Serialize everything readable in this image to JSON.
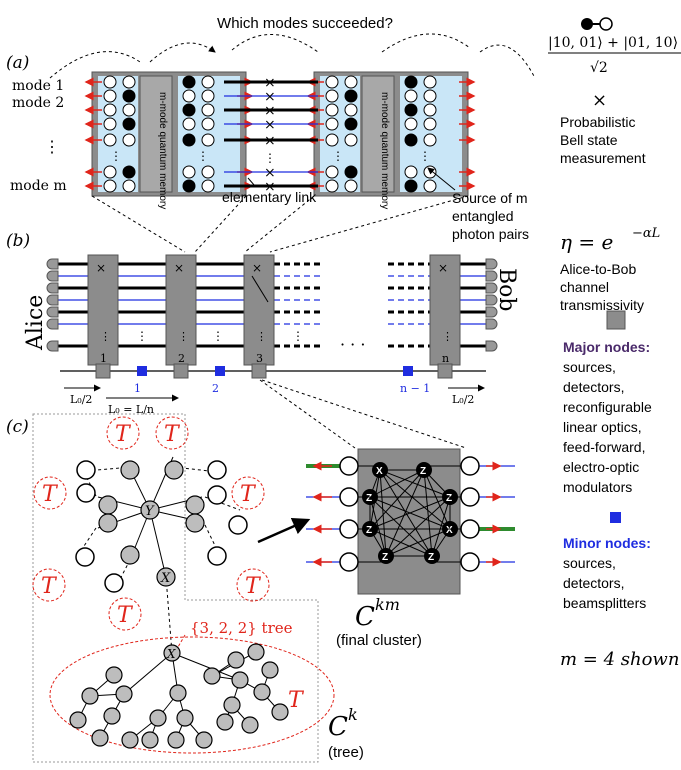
{
  "header": {
    "question": "Which modes succeeded?"
  },
  "panel_a": {
    "label": "(a)",
    "modes": [
      "mode 1",
      "mode 2",
      "mode m"
    ],
    "vdots": "⋮",
    "memory_label": "m-mode quantum memory",
    "elementary_link": "elementary link",
    "source_label_1": "Source of m",
    "source_label_2": "entangled",
    "source_label_3": "photon pairs"
  },
  "panel_b": {
    "label": "(b)",
    "alice": "Alice",
    "bob": "Bob",
    "dots": "· · ·",
    "major_numbers": [
      "1",
      "2",
      "3",
      "n"
    ],
    "minor_numbers": [
      "1",
      "2",
      "n − 1"
    ],
    "l0_half": "L₀/2",
    "l0_eq": "L₀ = L/n"
  },
  "panel_c": {
    "label": "(c)",
    "t_label": "T",
    "y_label": "Y",
    "x_label": "X",
    "z_label": "Z",
    "tree_label": "{3, 2, 2} tree",
    "ckm": "C",
    "ckm_sup": "km",
    "ckm_caption": "(final cluster)",
    "ck": "C",
    "ck_sup": "k",
    "ck_caption": "(tree)"
  },
  "legend": {
    "bell_state": "|10, 01⟩ + |01, 10⟩",
    "sqrt2": "√2",
    "cross": "×",
    "bsm_1": "Probabilistic",
    "bsm_2": "Bell state",
    "bsm_3": "measurement",
    "eta_formula": "η = e",
    "eta_exp": "−αL",
    "channel_1": "Alice-to-Bob",
    "channel_2": "channel",
    "channel_3": "transmissivity",
    "major_title": "Major nodes:",
    "major_items": [
      "sources,",
      "detectors,",
      "reconfigurable",
      "linear optics,",
      "feed-forward,",
      "electro-optic",
      "modulators"
    ],
    "minor_title": "Minor nodes:",
    "minor_items": [
      "sources,",
      "detectors,",
      "beamsplitters"
    ],
    "m_shown": "m = 4 shown"
  },
  "colors": {
    "gray_box": "#8c8c8c",
    "light_blue": "#c9e6f7",
    "red": "#e0251b",
    "blue": "#1f2de0",
    "purple": "#4a2a6a",
    "green": "#2e8b2e",
    "node_gray": "#bdbdbd"
  }
}
